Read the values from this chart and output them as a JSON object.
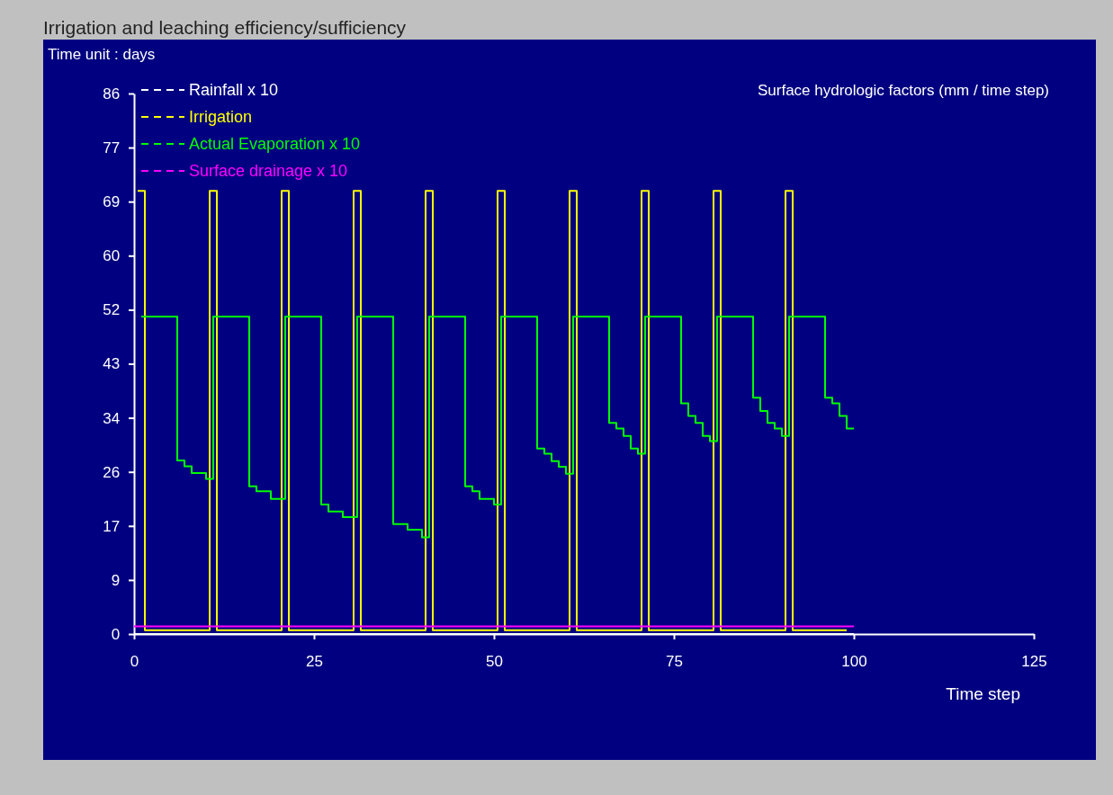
{
  "chart_data": {
    "type": "step",
    "title": "Irrigation and leaching efficiency/sufficiency",
    "ylabel": "Surface hydrologic factors (mm / time step)",
    "xlabel": "Time step",
    "annotations": [
      "Time unit : days"
    ],
    "xlim": [
      0,
      125
    ],
    "xticks": [
      0,
      25,
      50,
      75,
      100,
      125
    ],
    "ylim": [
      0,
      86
    ],
    "yticks": [
      0,
      {
        "value": 8.6,
        "label": "9"
      },
      {
        "value": 17.2,
        "label": "17"
      },
      {
        "value": 25.8,
        "label": "26"
      },
      {
        "value": 34.4,
        "label": "34"
      },
      {
        "value": 43,
        "label": "43"
      },
      {
        "value": 51.6,
        "label": "52"
      },
      {
        "value": 60.2,
        "label": "60"
      },
      {
        "value": 68.8,
        "label": "69"
      },
      {
        "value": 77.4,
        "label": "77"
      },
      86
    ],
    "grid": false,
    "legend": "top left",
    "series": [
      {
        "name": "Rainfall x 10",
        "color": "#ffffff",
        "x": [
          0,
          100
        ],
        "values": [
          0,
          0
        ]
      },
      {
        "name": "Irrigation",
        "color": "#ffff00",
        "x": [
          0.5,
          1.5,
          10.5,
          11.5,
          20.5,
          21.5,
          30.5,
          31.5,
          40.5,
          41.5,
          50.5,
          51.5,
          60.5,
          61.5,
          70.5,
          71.5,
          80.5,
          81.5,
          90.5,
          91.5,
          99
        ],
        "values": [
          70.5,
          0.6,
          70.5,
          0.6,
          70.5,
          0.6,
          70.5,
          0.6,
          70.5,
          0.6,
          70.5,
          0.6,
          70.5,
          0.6,
          70.5,
          0.6,
          70.5,
          0.6,
          70.5,
          0.6,
          0.6
        ]
      },
      {
        "name": "Actual Evaporation x 10",
        "color": "#00ff00",
        "x": [
          1,
          6,
          7,
          8,
          10,
          11,
          16,
          17,
          19,
          21,
          26,
          27,
          29,
          31,
          36,
          38,
          40,
          41,
          46,
          47,
          48,
          50,
          51,
          56,
          57,
          58,
          59,
          60,
          61,
          66,
          67,
          68,
          69,
          70,
          71,
          76,
          77,
          78,
          79,
          80,
          81,
          86,
          87,
          88,
          89,
          90,
          91,
          96,
          97,
          98,
          99,
          100
        ],
        "values": [
          50.5,
          27.6,
          26.7,
          25.6,
          24.7,
          50.5,
          23.5,
          22.7,
          21.5,
          50.5,
          20.6,
          19.5,
          18.6,
          50.5,
          17.5,
          16.6,
          15.4,
          50.5,
          23.5,
          22.7,
          21.5,
          20.6,
          50.5,
          29.5,
          28.7,
          27.5,
          26.6,
          25.5,
          50.5,
          33.6,
          32.7,
          31.5,
          29.5,
          28.7,
          50.5,
          36.7,
          34.7,
          33.6,
          31.5,
          30.7,
          50.5,
          37.6,
          35.5,
          33.6,
          32.7,
          31.5,
          50.5,
          37.6,
          36.7,
          34.7,
          32.7,
          32.7
        ]
      },
      {
        "name": "Surface drainage x 10",
        "color": "#ff00ff",
        "x": [
          0,
          100
        ],
        "values": [
          1.2,
          1.2
        ]
      }
    ]
  }
}
